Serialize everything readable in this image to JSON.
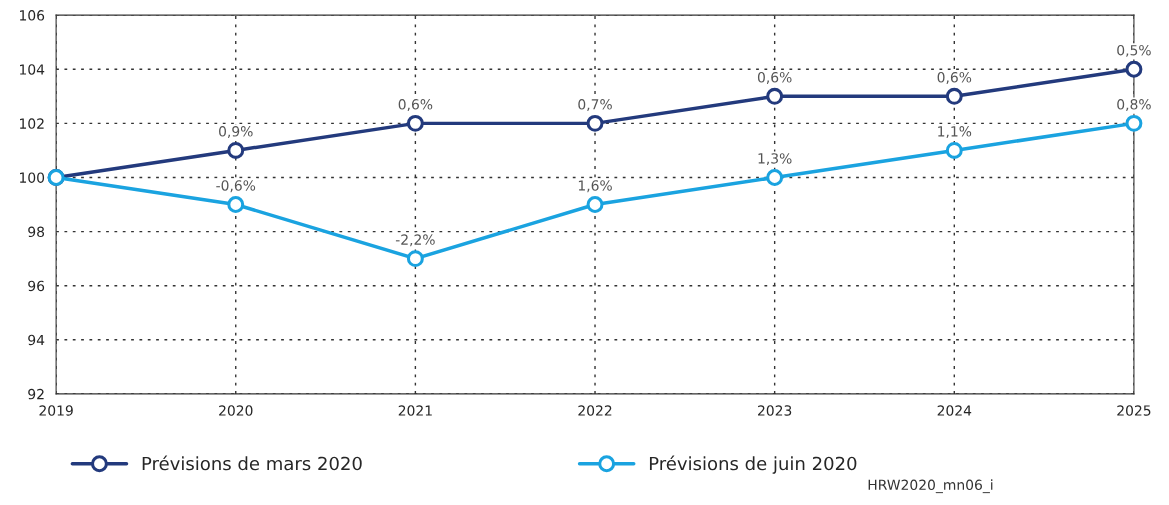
{
  "chart_data": {
    "type": "line",
    "categories": [
      "2019",
      "2020",
      "2021",
      "2022",
      "2023",
      "2024",
      "2025"
    ],
    "series": [
      {
        "name": "Prévisions de mars 2020",
        "color": "#233a7d",
        "values": [
          100,
          101,
          102,
          102,
          103,
          103,
          104
        ]
      },
      {
        "name": "Prévisions de juin 2020",
        "color": "#1aa3e0",
        "values": [
          100,
          99,
          97,
          99,
          100,
          101,
          102
        ]
      }
    ],
    "ylim": [
      92,
      106
    ],
    "yticks": [
      92,
      94,
      96,
      98,
      100,
      102,
      104,
      106
    ],
    "grid": true,
    "legend": "bottom",
    "marker": "circle",
    "line_style": "solid",
    "annotations": [
      {
        "text": "0,9%",
        "x": "2020",
        "y": 101
      },
      {
        "text": "0,6%",
        "x": "2021",
        "y": 102
      },
      {
        "text": "0,7%",
        "x": "2022",
        "y": 102
      },
      {
        "text": "0,6%",
        "x": "2023",
        "y": 103
      },
      {
        "text": "0,6%",
        "x": "2024",
        "y": 103
      },
      {
        "text": "0,5%",
        "x": "2025",
        "y": 104
      },
      {
        "text": "-0,6%",
        "x": "2020",
        "y": 99
      },
      {
        "text": "-2,2%",
        "x": "2021",
        "y": 97
      },
      {
        "text": "1,6%",
        "x": "2022",
        "y": 99
      },
      {
        "text": "1,3%",
        "x": "2023",
        "y": 100
      },
      {
        "text": "1,1%",
        "x": "2024",
        "y": 101
      },
      {
        "text": "0,8%",
        "x": "2025",
        "y": 102
      },
      "HRW2020_mn06_i"
    ]
  }
}
